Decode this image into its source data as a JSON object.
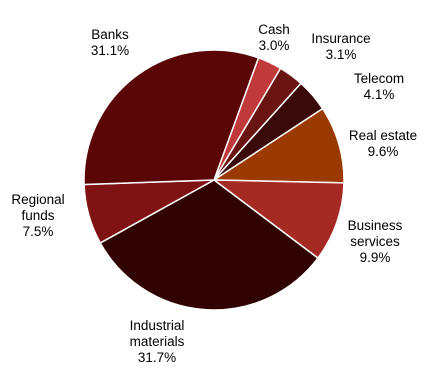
{
  "chart_data": {
    "type": "pie",
    "title": "",
    "start_angle_deg": 20,
    "direction": "clockwise",
    "slices": [
      {
        "label": "Cash",
        "value_label": "3.0%",
        "value": 3.0,
        "color": "#c0393b"
      },
      {
        "label": "Insurance",
        "value_label": "3.1%",
        "value": 3.1,
        "color": "#6b1414"
      },
      {
        "label": "Telecom",
        "value_label": "4.1%",
        "value": 4.1,
        "color": "#3a0909"
      },
      {
        "label": "Real estate",
        "value_label": "9.6%",
        "value": 9.6,
        "color": "#9b3a00"
      },
      {
        "label": "Business services",
        "label_lines": [
          "Business",
          "services"
        ],
        "value_label": "9.9%",
        "value": 9.9,
        "color": "#a52a24"
      },
      {
        "label": "Industrial materials",
        "label_lines": [
          "Industrial",
          "materials"
        ],
        "value_label": "31.7%",
        "value": 31.7,
        "color": "#300202"
      },
      {
        "label": "Regional funds",
        "label_lines": [
          "Regional",
          "funds"
        ],
        "value_label": "7.5%",
        "value": 7.5,
        "color": "#7f1212"
      },
      {
        "label": "Banks",
        "value_label": "31.1%",
        "value": 31.1,
        "color": "#5a0606"
      }
    ]
  }
}
